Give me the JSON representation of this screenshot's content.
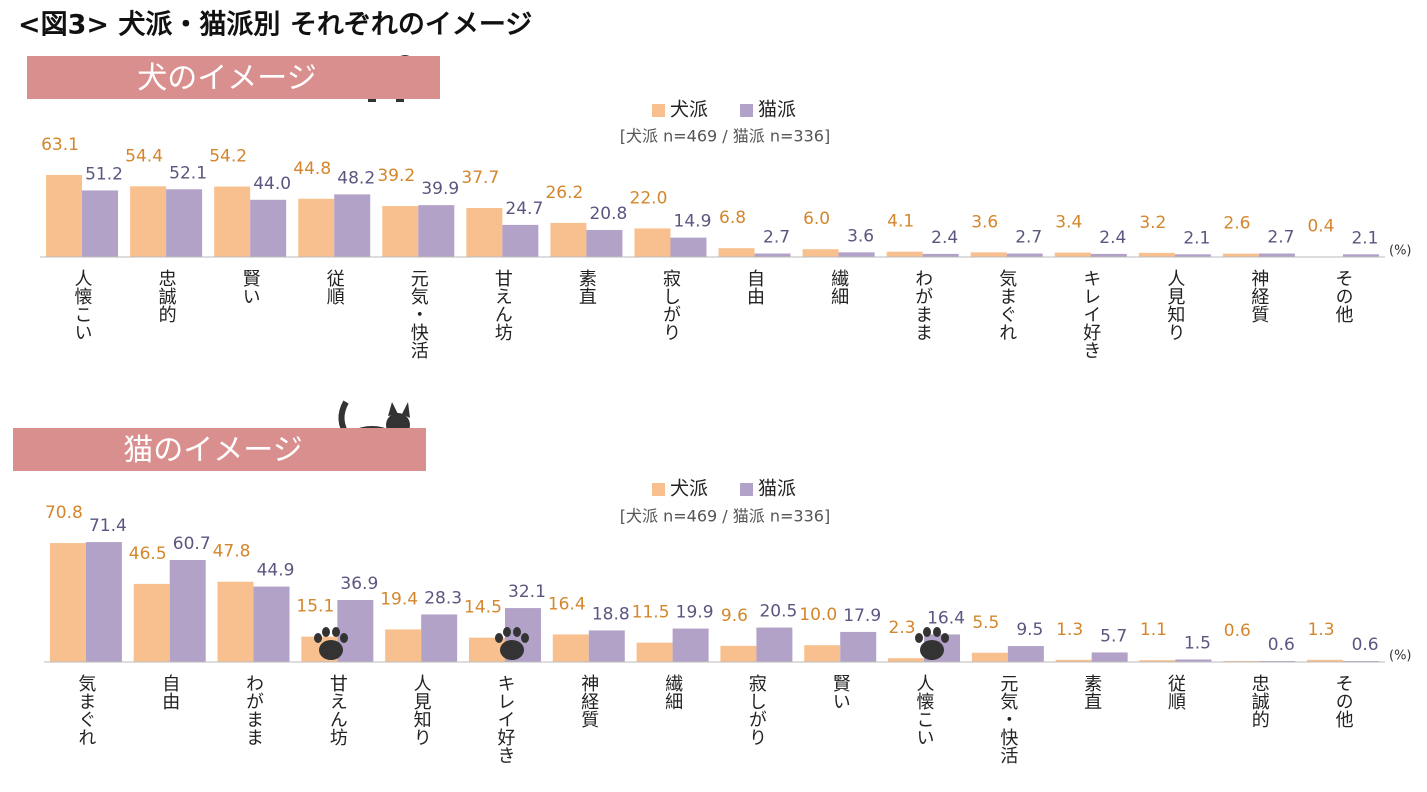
{
  "title": "<図3> 犬派・猫派別 それぞれのイメージ",
  "chart_data": [
    {
      "type": "bar",
      "heading": "犬のイメージ",
      "note": "[犬派 n=469 / 猫派 n=336]",
      "unit": "(%)",
      "categories": [
        "人懐こい",
        "忠誠的",
        "賢い",
        "従順",
        "元気・快活",
        "甘えん坊",
        "素直",
        "寂しがり",
        "自由",
        "繊細",
        "わがまま",
        "気まぐれ",
        "キレイ好き",
        "人見知り",
        "神経質",
        "その他"
      ],
      "ylim": [
        0,
        100
      ],
      "series": [
        {
          "name": "犬派",
          "color": "#f9c08f",
          "label_color": "#d4862c",
          "values": [
            63.1,
            54.4,
            54.2,
            44.8,
            39.2,
            37.7,
            26.2,
            22.0,
            6.8,
            6.0,
            4.1,
            3.6,
            3.4,
            3.2,
            2.6,
            0.4
          ],
          "value_labels": [
            "63.1",
            "54.4",
            "54.2",
            "44.8",
            "39.2",
            "37.7",
            "26.2",
            "22.0",
            "6.8",
            "6.0",
            "4.1",
            "3.6",
            "3.4",
            "3.2",
            "2.6",
            "0.4"
          ]
        },
        {
          "name": "猫派",
          "color": "#b3a2c8",
          "label_color": "#5b5680",
          "values": [
            51.2,
            52.1,
            44.0,
            48.2,
            39.9,
            24.7,
            20.8,
            14.9,
            2.7,
            3.6,
            2.4,
            2.7,
            2.4,
            2.1,
            2.7,
            2.1
          ],
          "value_labels": [
            "51.2",
            "52.1",
            "44.0",
            "48.2",
            "39.9",
            "24.7",
            "20.8",
            "14.9",
            "2.7",
            "3.6",
            "2.4",
            "2.7",
            "2.4",
            "2.1",
            "2.7",
            "2.1"
          ]
        }
      ]
    },
    {
      "type": "bar",
      "heading": "猫のイメージ",
      "note": "[犬派 n=469 / 猫派 n=336]",
      "unit": "(%)",
      "categories": [
        "気まぐれ",
        "自由",
        "わがまま",
        "甘えん坊",
        "人見知り",
        "キレイ好き",
        "神経質",
        "繊細",
        "寂しがり",
        "賢い",
        "人懐こい",
        "元気・快活",
        "素直",
        "従順",
        "忠誠的",
        "その他"
      ],
      "ylim": [
        0,
        100
      ],
      "series": [
        {
          "name": "犬派",
          "color": "#f9c08f",
          "label_color": "#d4862c",
          "values": [
            70.8,
            46.5,
            47.8,
            15.1,
            19.4,
            14.5,
            16.4,
            11.5,
            9.6,
            10.0,
            2.3,
            5.5,
            1.3,
            1.1,
            0.6,
            1.3
          ],
          "value_labels": [
            "70.8",
            "46.5",
            "47.8",
            "15.1",
            "19.4",
            "14.5",
            "16.4",
            "11.5",
            "9.6",
            "10.0",
            "2.3",
            "5.5",
            "1.3",
            "1.1",
            "0.6",
            "1.3"
          ]
        },
        {
          "name": "猫派",
          "color": "#b3a2c8",
          "label_color": "#5b5680",
          "values": [
            71.4,
            60.7,
            44.9,
            36.9,
            28.3,
            32.1,
            18.8,
            19.9,
            20.5,
            17.9,
            16.4,
            9.5,
            5.7,
            1.5,
            0.6,
            0.6
          ],
          "value_labels": [
            "71.4",
            "60.7",
            "44.9",
            "36.9",
            "28.3",
            "32.1",
            "18.8",
            "19.9",
            "20.5",
            "17.9",
            "16.4",
            "9.5",
            "5.7",
            "1.5",
            "0.6",
            "0.6"
          ]
        }
      ]
    }
  ]
}
